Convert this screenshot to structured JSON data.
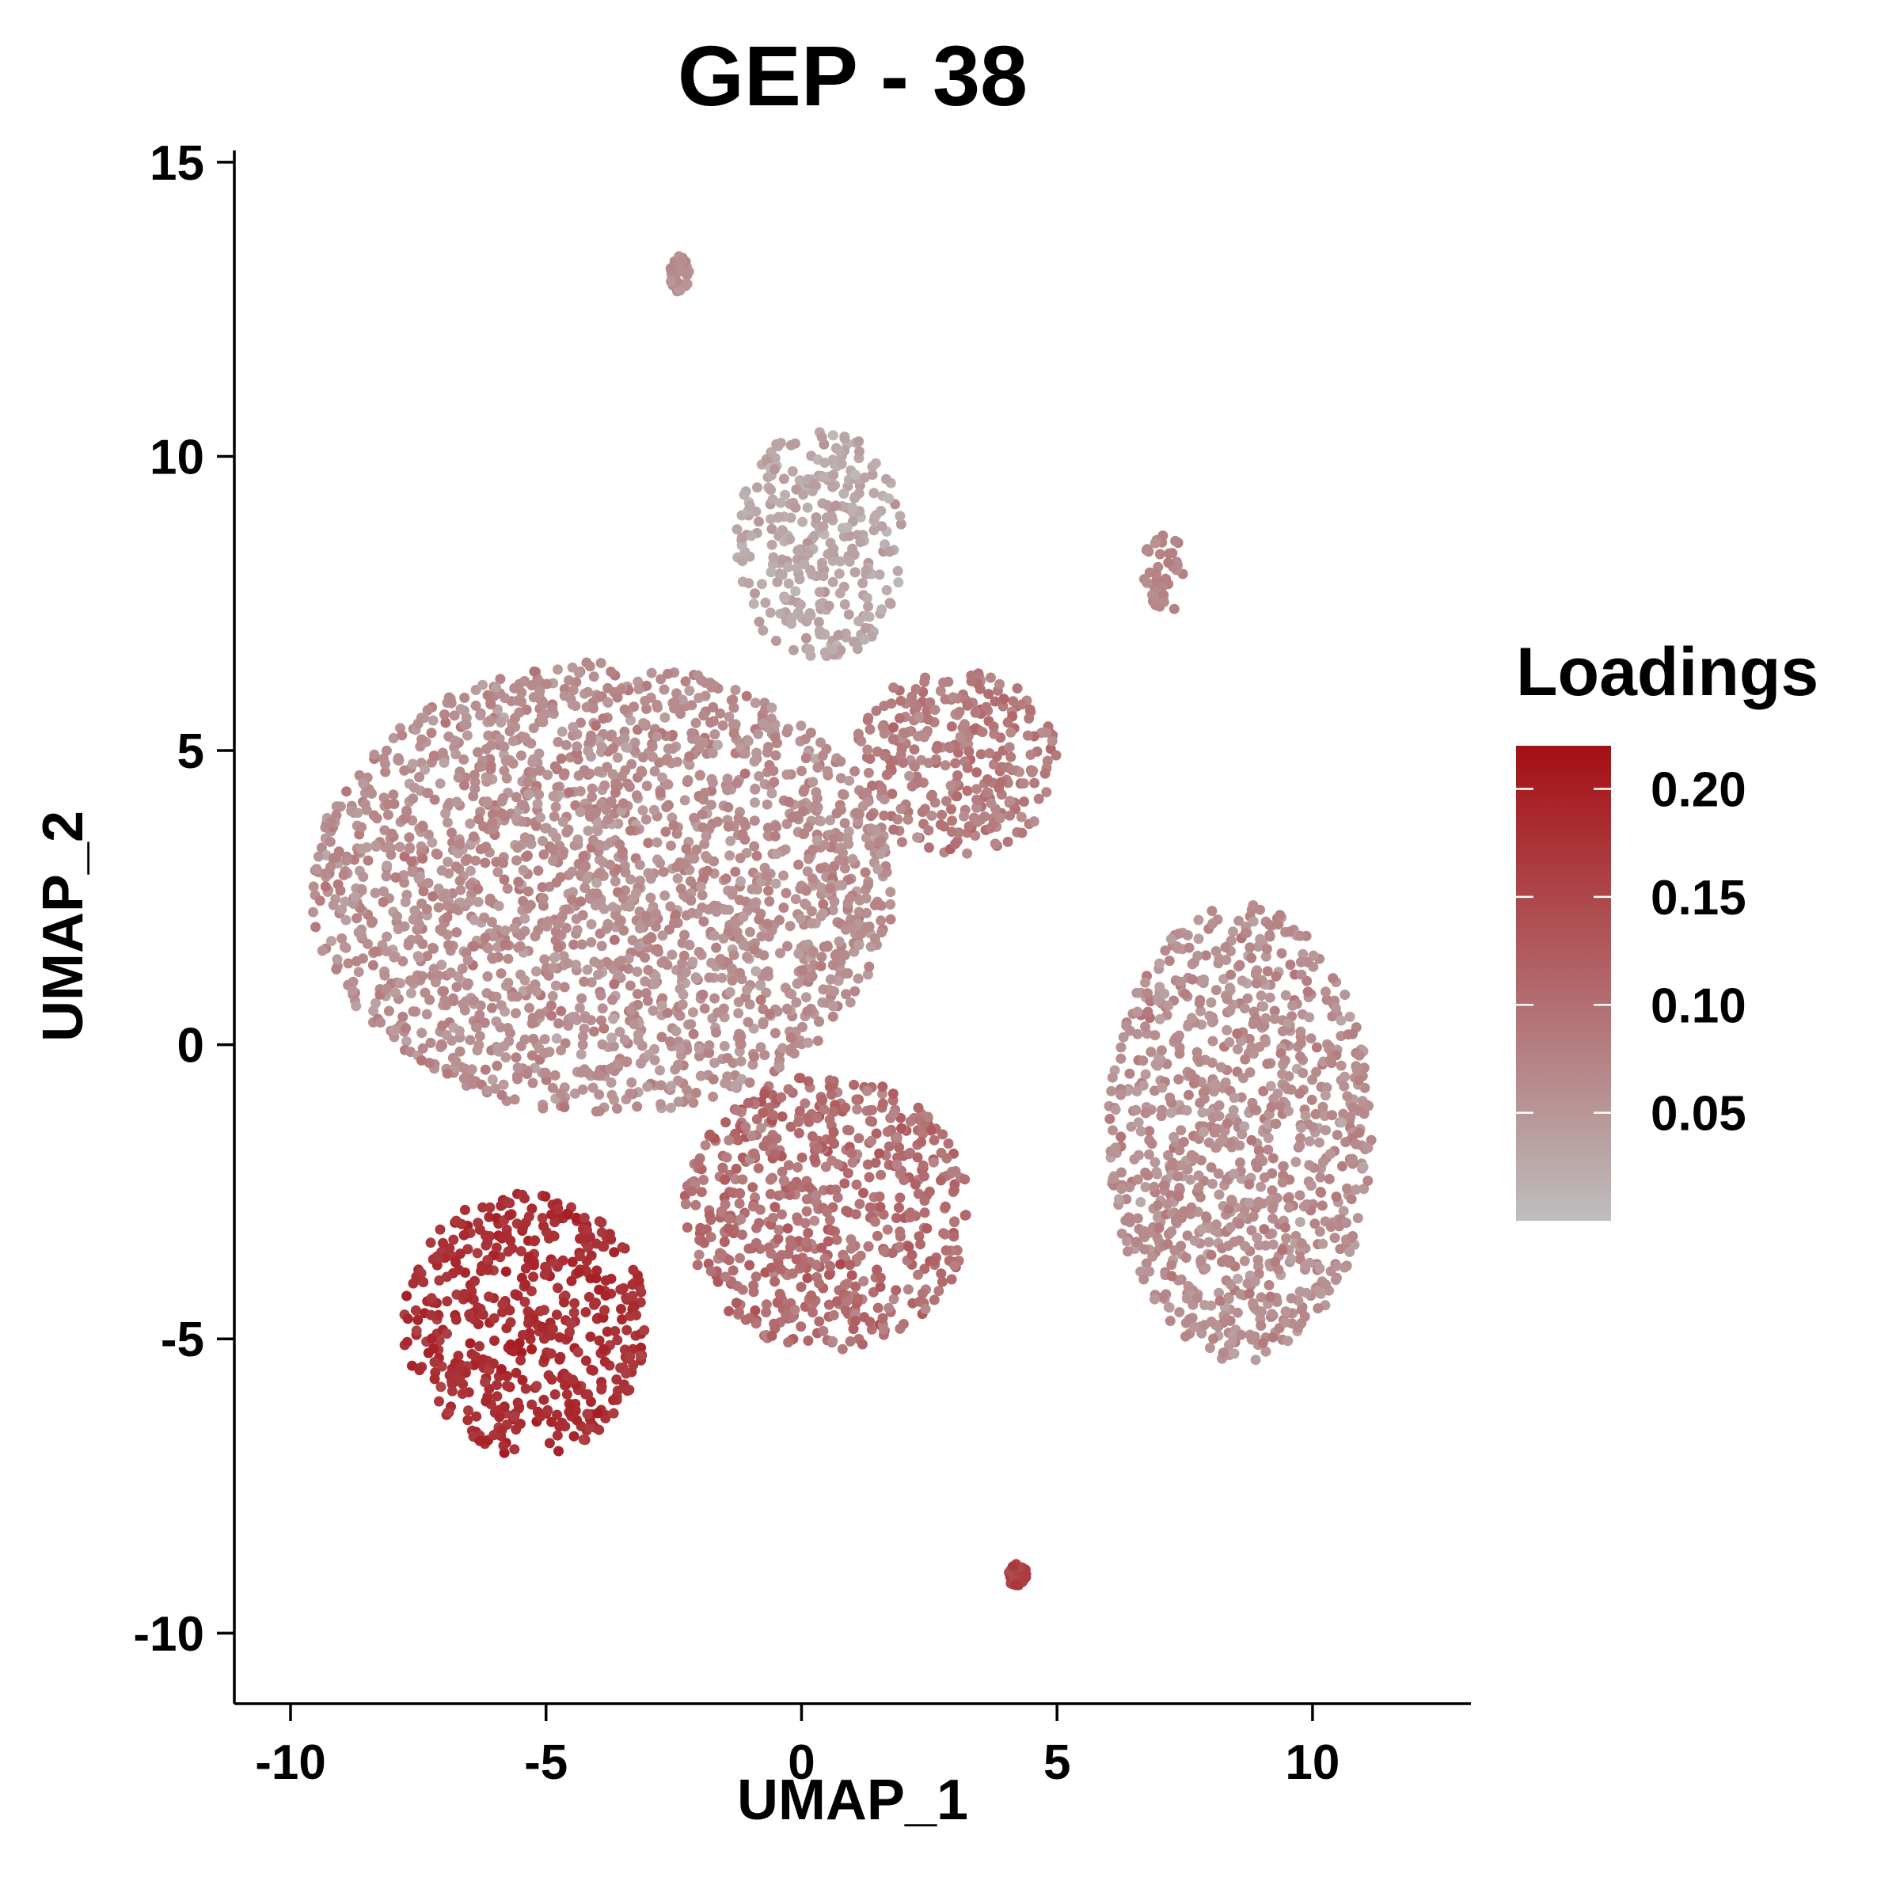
{
  "chart_data": {
    "type": "scatter",
    "title": "GEP - 38",
    "xlabel": "UMAP_1",
    "ylabel": "UMAP_2",
    "xlim": [
      -11.1,
      13.1
    ],
    "ylim": [
      -11.2,
      15.2
    ],
    "xticks": [
      -10,
      -5,
      0,
      5,
      10
    ],
    "yticks": [
      -10,
      -5,
      0,
      5,
      10,
      15
    ],
    "color_scale": {
      "title": "Loadings",
      "low_color": "#bebebe",
      "high_color": "#a50f15",
      "min": 0.0,
      "max": 0.22,
      "ticks": [
        0.05,
        0.1,
        0.15,
        0.2
      ],
      "tick_labels": [
        "0.05",
        "0.10",
        "0.15",
        "0.20"
      ]
    },
    "clusters": [
      {
        "region": "large-left-mass",
        "x_range": [
          -9.6,
          1.8
        ],
        "y_range": [
          -1.2,
          6.5
        ],
        "loading": 0.06,
        "spread": 0.04
      },
      {
        "region": "lower-left-lobe",
        "x_range": [
          -7.8,
          -3.0
        ],
        "y_range": [
          -7.0,
          -2.5
        ],
        "loading": 0.18,
        "spread": 0.03
      },
      {
        "region": "lower-middle-lobe",
        "x_range": [
          -2.3,
          3.3
        ],
        "y_range": [
          -5.2,
          -0.5
        ],
        "loading": 0.1,
        "spread": 0.05
      },
      {
        "region": "upper-branches",
        "x_range": [
          -1.3,
          2.0
        ],
        "y_range": [
          6.5,
          10.5
        ],
        "loading": 0.03,
        "spread": 0.03
      },
      {
        "region": "mid-branch",
        "x_range": [
          1.0,
          5.0
        ],
        "y_range": [
          3.2,
          6.4
        ],
        "loading": 0.08,
        "spread": 0.04
      },
      {
        "region": "right-cluster",
        "x_range": [
          6.0,
          11.2
        ],
        "y_range": [
          -5.4,
          2.4
        ],
        "loading": 0.06,
        "spread": 0.04
      },
      {
        "region": "top-island",
        "x_range": [
          -2.6,
          -2.2
        ],
        "y_range": [
          12.8,
          13.4
        ],
        "loading": 0.06,
        "spread": 0.02
      },
      {
        "region": "bottom-island",
        "x_range": [
          4.0,
          4.4
        ],
        "y_range": [
          -9.2,
          -8.8
        ],
        "loading": 0.16,
        "spread": 0.02
      },
      {
        "region": "right-thin-branch",
        "x_range": [
          6.7,
          7.5
        ],
        "y_range": [
          7.3,
          8.8
        ],
        "loading": 0.07,
        "spread": 0.02
      }
    ]
  }
}
